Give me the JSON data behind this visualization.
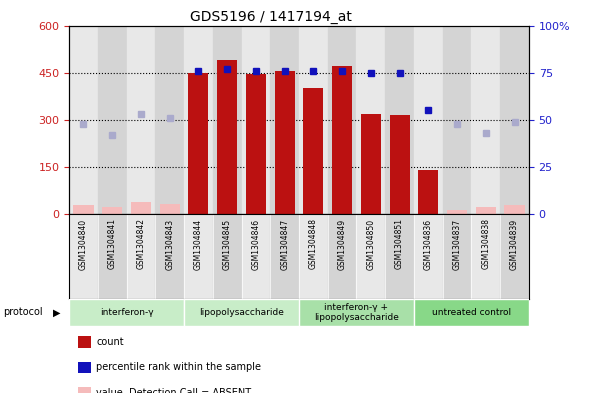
{
  "title": "GDS5196 / 1417194_at",
  "samples": [
    "GSM1304840",
    "GSM1304841",
    "GSM1304842",
    "GSM1304843",
    "GSM1304844",
    "GSM1304845",
    "GSM1304846",
    "GSM1304847",
    "GSM1304848",
    "GSM1304849",
    "GSM1304850",
    "GSM1304851",
    "GSM1304836",
    "GSM1304837",
    "GSM1304838",
    "GSM1304839"
  ],
  "count_values": [
    null,
    null,
    null,
    null,
    450,
    490,
    445,
    455,
    400,
    470,
    320,
    315,
    140,
    null,
    null,
    null
  ],
  "count_absent": [
    28,
    22,
    38,
    32,
    null,
    null,
    null,
    null,
    null,
    null,
    null,
    null,
    null,
    12,
    22,
    28
  ],
  "rank_present_pct": [
    null,
    null,
    null,
    null,
    76,
    77,
    76,
    76,
    76,
    76,
    75,
    75,
    55,
    null,
    null,
    null
  ],
  "rank_absent_pct": [
    48,
    42,
    53,
    51,
    null,
    null,
    null,
    null,
    null,
    null,
    null,
    null,
    null,
    48,
    43,
    49
  ],
  "groups": [
    {
      "label": "interferon-γ",
      "start": 0,
      "end": 4,
      "color": "#c8edc8"
    },
    {
      "label": "lipopolysaccharide",
      "start": 4,
      "end": 8,
      "color": "#c8edc8"
    },
    {
      "label": "interferon-γ +\nlipopolysaccharide",
      "start": 8,
      "end": 12,
      "color": "#a8e0a8"
    },
    {
      "label": "untreated control",
      "start": 12,
      "end": 16,
      "color": "#88d888"
    }
  ],
  "ylim_left": [
    0,
    600
  ],
  "ylim_right": [
    0,
    100
  ],
  "yticks_left": [
    0,
    150,
    300,
    450,
    600
  ],
  "yticks_right": [
    0,
    25,
    50,
    75,
    100
  ],
  "ytick_labels_left": [
    "0",
    "150",
    "300",
    "450",
    "600"
  ],
  "ytick_labels_right": [
    "0",
    "25",
    "50",
    "75",
    "100%"
  ],
  "bar_color": "#bb1111",
  "bar_absent_color": "#f5bbbb",
  "dot_color": "#1111bb",
  "dot_absent_color": "#aaaacc",
  "label_color_left": "#cc2222",
  "label_color_right": "#2222cc",
  "col_colors": [
    "#e8e8e8",
    "#d4d4d4"
  ]
}
